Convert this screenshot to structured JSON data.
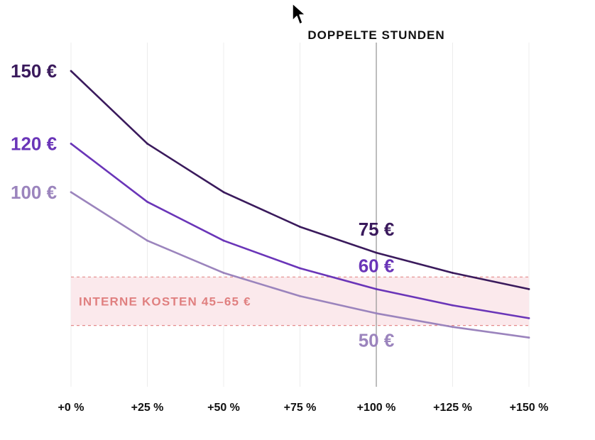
{
  "chart_data": {
    "type": "line",
    "x_labels": [
      "+0 %",
      "+25 %",
      "+50 %",
      "+75 %",
      "+100 %",
      "+125 %",
      "+150 %"
    ],
    "x": [
      0,
      25,
      50,
      75,
      100,
      125,
      150
    ],
    "ylim": [
      20,
      160
    ],
    "grid": true,
    "series": [
      {
        "key": "s150",
        "color": "#3a1a5c",
        "start_label": "150 €",
        "end_label": "75 €",
        "values": [
          150,
          120,
          100,
          85.7,
          75,
          66.7,
          60
        ]
      },
      {
        "key": "s120",
        "color": "#6a35b8",
        "start_label": "120 €",
        "end_label": "60 €",
        "values": [
          120,
          96,
          80,
          68.6,
          60,
          53.3,
          48
        ]
      },
      {
        "key": "s100",
        "color": "#9b84bd",
        "start_label": "100 €",
        "end_label": "50 €",
        "values": [
          100,
          80,
          66.7,
          57.1,
          50,
          44.4,
          40
        ]
      }
    ],
    "reference_line": {
      "x": 100,
      "label": "DOPPELTE STUNDEN"
    },
    "band": {
      "from": 45,
      "to": 65,
      "label": "INTERNE KOSTEN 45–65 €"
    }
  }
}
